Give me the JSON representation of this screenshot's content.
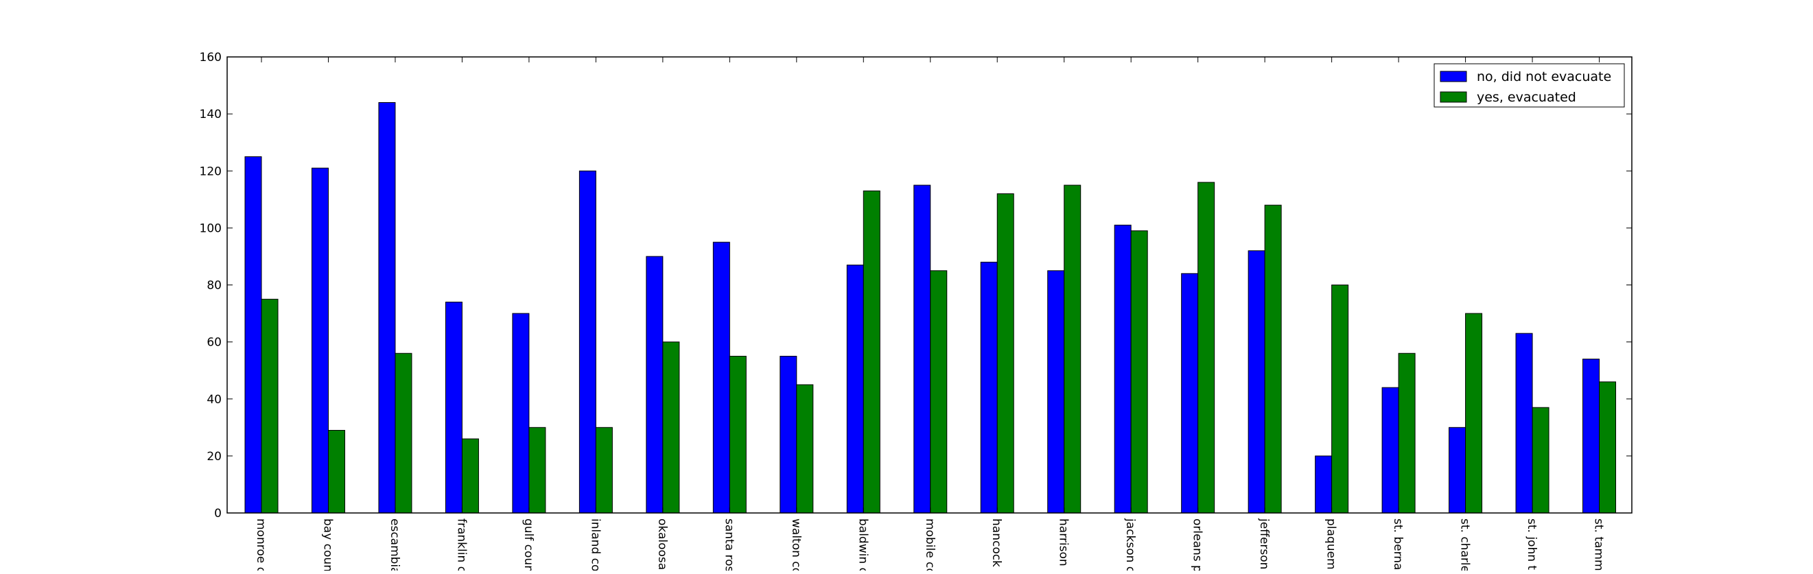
{
  "chart_data": {
    "type": "bar",
    "title": "",
    "xlabel": "",
    "ylabel": "",
    "ylim": [
      0,
      160
    ],
    "yticks": [
      0,
      20,
      40,
      60,
      80,
      100,
      120,
      140,
      160
    ],
    "grid": false,
    "legend_position": "top-right",
    "categories": [
      "monroe c",
      "bay coun",
      "escambia",
      "franklin c",
      "gulf coun",
      "inland co",
      "okaloosa",
      "santa ros",
      "walton co",
      "baldwin c",
      "mobile co",
      "hancock",
      "harrison",
      "jackson c",
      "orleans p",
      "jefferson",
      "plaquemi",
      "st. berna",
      "st. charle",
      "st. john t",
      "st. tamm"
    ],
    "series": [
      {
        "name": "no, did not evacuate",
        "color": "#0000ff",
        "values": [
          125,
          121,
          144,
          74,
          70,
          120,
          90,
          95,
          55,
          87,
          115,
          88,
          85,
          101,
          84,
          92,
          20,
          44,
          30,
          63,
          54
        ]
      },
      {
        "name": "yes, evacuated",
        "color": "#008000",
        "values": [
          75,
          29,
          56,
          26,
          30,
          30,
          60,
          55,
          45,
          113,
          85,
          112,
          115,
          99,
          116,
          108,
          80,
          56,
          70,
          37,
          46
        ]
      }
    ]
  }
}
